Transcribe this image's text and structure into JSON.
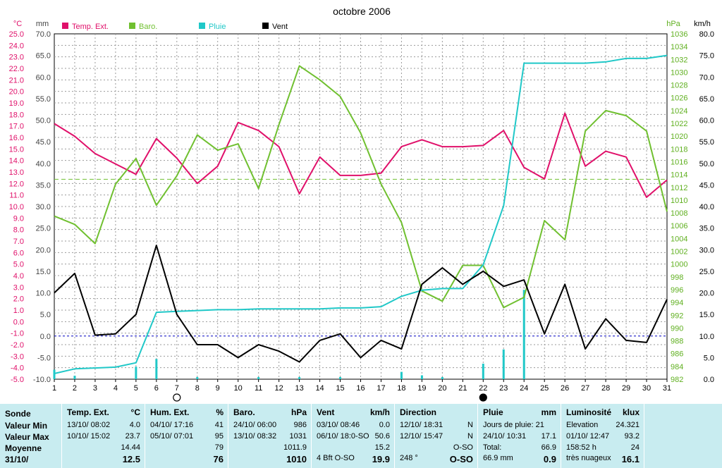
{
  "chart_data": {
    "type": "line",
    "title": "octobre 2006",
    "x": [
      1,
      2,
      3,
      4,
      5,
      6,
      7,
      8,
      9,
      10,
      11,
      12,
      13,
      14,
      15,
      16,
      17,
      18,
      19,
      20,
      21,
      22,
      23,
      24,
      25,
      26,
      27,
      28,
      29,
      30,
      31
    ],
    "xticks": [
      "1",
      "2",
      "3",
      "4",
      "5",
      "6",
      "7",
      "8",
      "9",
      "10",
      "11",
      "12",
      "13",
      "14",
      "15",
      "16",
      "17",
      "18",
      "19",
      "20",
      "21",
      "22",
      "23",
      "24",
      "25",
      "26",
      "27",
      "28",
      "29",
      "30",
      "31"
    ],
    "axes": {
      "temp": {
        "unit": "°C",
        "ylim": [
          -5.0,
          25.0
        ],
        "step": 1.0,
        "color": "#e0106a"
      },
      "rain": {
        "unit": "mm",
        "ylim": [
          -10.0,
          70.0
        ],
        "step": 5.0,
        "color": "#444444"
      },
      "baro": {
        "unit": "hPa",
        "ylim": [
          982,
          1036
        ],
        "step": 2,
        "color": "#60b020"
      },
      "wind": {
        "unit": "km/h",
        "ylim": [
          0.0,
          80.0
        ],
        "step": 5.0,
        "color": "#000000"
      }
    },
    "legend": [
      {
        "name": "Temp. Ext.",
        "color": "#e0106a"
      },
      {
        "name": "Baro.",
        "color": "#70c030"
      },
      {
        "name": "Pluie",
        "color": "#20c8c8"
      },
      {
        "name": "Vent",
        "color": "#000000"
      }
    ],
    "series": [
      {
        "name": "Temp. Ext.",
        "axis": "temp",
        "color": "#e0106a",
        "values": [
          17.2,
          16.1,
          14.6,
          13.7,
          12.8,
          15.9,
          14.2,
          12.0,
          13.5,
          17.3,
          16.6,
          15.2,
          11.1,
          14.3,
          12.7,
          12.7,
          12.9,
          15.2,
          15.8,
          15.2,
          15.2,
          15.3,
          16.6,
          13.4,
          12.4,
          18.1,
          13.5,
          14.8,
          14.3,
          10.8,
          12.3
        ]
      },
      {
        "name": "Baro.",
        "axis": "baro",
        "color": "#70c030",
        "values": [
          1007.5,
          1006.2,
          1003.2,
          1012.5,
          1016.5,
          1009.2,
          1013.8,
          1020.2,
          1017.8,
          1018.8,
          1011.8,
          1021.8,
          1031.0,
          1028.8,
          1026.2,
          1020.5,
          1012.5,
          1006.5,
          995.8,
          994.2,
          999.8,
          999.8,
          993.2,
          994.8,
          1006.8,
          1003.8,
          1020.8,
          1024.0,
          1023.2,
          1020.8,
          1008.2
        ]
      },
      {
        "name": "Pluie",
        "axis": "rain",
        "color": "#20c8c8",
        "values": [
          -8.7,
          -7.6,
          -7.4,
          -7.2,
          -6.2,
          5.5,
          5.7,
          5.9,
          6.1,
          6.1,
          6.3,
          6.3,
          6.3,
          6.3,
          6.5,
          6.5,
          6.8,
          9.2,
          10.6,
          11.0,
          11.0,
          16.5,
          30.2,
          63.2,
          63.2,
          63.2,
          63.2,
          63.5,
          64.3,
          64.3,
          65.0
        ]
      },
      {
        "name": "Vent",
        "axis": "wind",
        "color": "#000000",
        "values": [
          20.0,
          24.5,
          10.2,
          10.5,
          15.0,
          31.0,
          15.0,
          8.0,
          8.0,
          5.0,
          8.0,
          6.5,
          4.0,
          9.0,
          10.5,
          5.0,
          9.0,
          7.0,
          22.0,
          25.8,
          22.0,
          25.0,
          21.5,
          23.0,
          10.5,
          22.0,
          7.0,
          14.0,
          9.0,
          8.5,
          18.5
        ]
      }
    ],
    "rain_bars": {
      "axis": "rain",
      "days": [
        1,
        2,
        5,
        6,
        8,
        11,
        13,
        15,
        18,
        19,
        20,
        22,
        23,
        24
      ],
      "values": [
        2.2,
        0.8,
        2.9,
        4.7,
        0.5,
        0.5,
        0.5,
        0.5,
        1.7,
        0.9,
        0.5,
        3.6,
        6.9,
        20.7
      ]
    },
    "reference_lines": [
      {
        "axis": "baro",
        "value": 1013.25,
        "style": "dashed",
        "color": "#70c030"
      },
      {
        "axis": "rain",
        "value": 0.0,
        "style": "dotted",
        "color": "#0000c0"
      }
    ],
    "moon_markers": [
      {
        "day": 7,
        "phase": "full"
      },
      {
        "day": 22,
        "phase": "new"
      }
    ],
    "grid": true
  },
  "summary": {
    "labels": {
      "sonde": "Sonde",
      "min": "Valeur Min",
      "max": "Valeur Max",
      "avg": "Moyenne",
      "date": "31/10/"
    },
    "temp": {
      "title": "Temp. Ext.",
      "unit": "°C",
      "min_date": "13/10/  08:02",
      "min": "4.0",
      "max_date": "10/10/  15:02",
      "max": "23.7",
      "avg": "14.44",
      "cur": "12.5"
    },
    "hum": {
      "title": "Hum. Ext.",
      "unit": "%",
      "min_date": "04/10/  17:16",
      "min": "41",
      "max_date": "05/10/  07:01",
      "max": "95",
      "avg": "79",
      "cur": "76"
    },
    "baro": {
      "title": "Baro.",
      "unit": "hPa",
      "min_date": "24/10/  06:00",
      "min": "986",
      "max_date": "13/10/  08:32",
      "max": "1031",
      "avg": "1011.9",
      "cur": "1010"
    },
    "wind": {
      "title": "Vent",
      "unit": "km/h",
      "min_date": "03/10/  08:46",
      "min": "0.0",
      "max_date": "06/10/  18:0-SO",
      "max": "50.6",
      "avg": "15.2",
      "cur_label": "4 Bft O-SO",
      "cur": "19.9"
    },
    "dir": {
      "title": "Direction",
      "min_date": "12/10/  18:31",
      "min": "N",
      "max_date": "12/10/  15:47",
      "max": "N",
      "avg": "O-SO",
      "cur_label": "248 °",
      "cur": "O-SO"
    },
    "rain": {
      "title": "Pluie",
      "unit": "mm",
      "days": "Jours de pluie: 21",
      "max_date": "24/10/  10:31",
      "max": "17.1",
      "total_label": "Total:",
      "total": "66.9",
      "cur_label": "66.9 mm",
      "cur": "0.9"
    },
    "lum": {
      "title": "Luminosité",
      "unit": "klux",
      "elev_label": "Elevation",
      "elev": "24.321",
      "max_date": "01/10/  12:47",
      "max": "93.2",
      "dur": "158:52 h",
      "dur_val": "24",
      "sky": "très nuageux",
      "cur": "16.1"
    }
  }
}
